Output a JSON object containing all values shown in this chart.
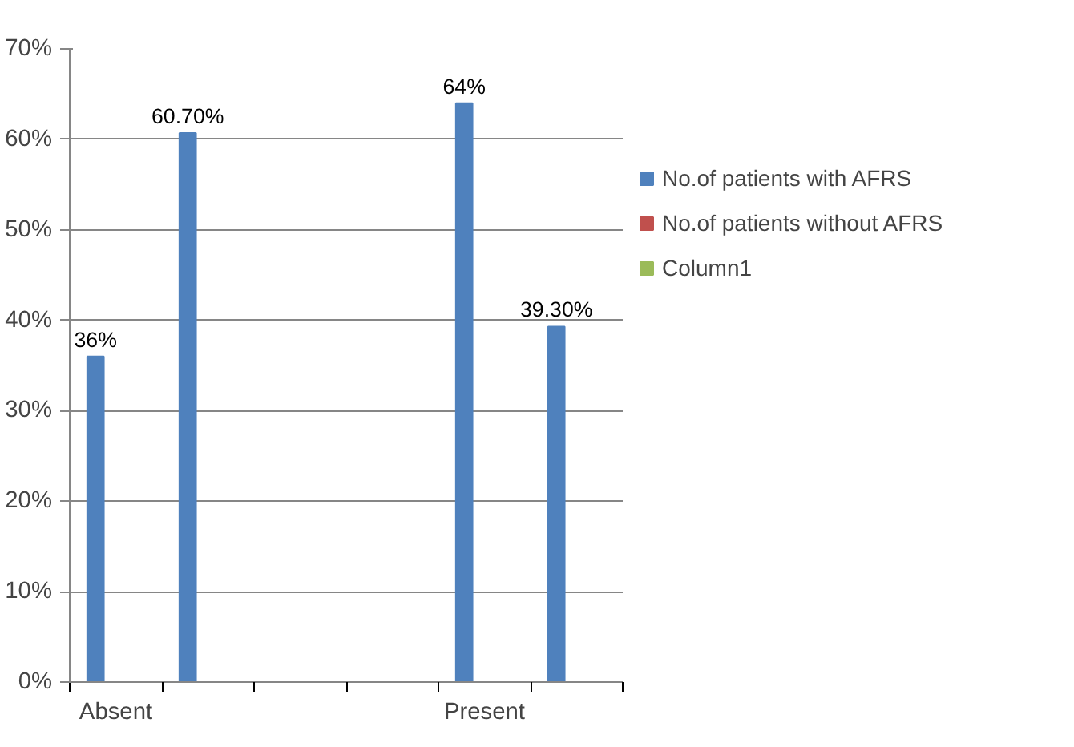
{
  "chart_data": {
    "type": "bar",
    "categories": [
      "Absent",
      null,
      null,
      null,
      "Present",
      null
    ],
    "series": [
      {
        "name": "No.of patients with AFRS",
        "color": "#4f81bd",
        "values": [
          36,
          60.7,
          null,
          null,
          64,
          39.3
        ],
        "value_labels": [
          "36%",
          "60.70%",
          null,
          null,
          "64%",
          "39.30%"
        ]
      },
      {
        "name": "No.of patients without AFRS",
        "color": "#c0504d",
        "values": [
          null,
          null,
          null,
          null,
          null,
          null
        ]
      },
      {
        "name": "Column1",
        "color": "#9bbb59",
        "values": [
          null,
          null,
          null,
          null,
          null,
          null
        ]
      }
    ],
    "ylim": [
      0,
      70
    ],
    "yticks": [
      {
        "value": 0,
        "label": "0%"
      },
      {
        "value": 10,
        "label": "10%"
      },
      {
        "value": 20,
        "label": "20%"
      },
      {
        "value": 30,
        "label": "30%"
      },
      {
        "value": 40,
        "label": "40%"
      },
      {
        "value": 50,
        "label": "50%"
      },
      {
        "value": 60,
        "label": "60%"
      },
      {
        "value": 70,
        "label": "70%"
      }
    ],
    "grid": "y",
    "legend": "right"
  }
}
